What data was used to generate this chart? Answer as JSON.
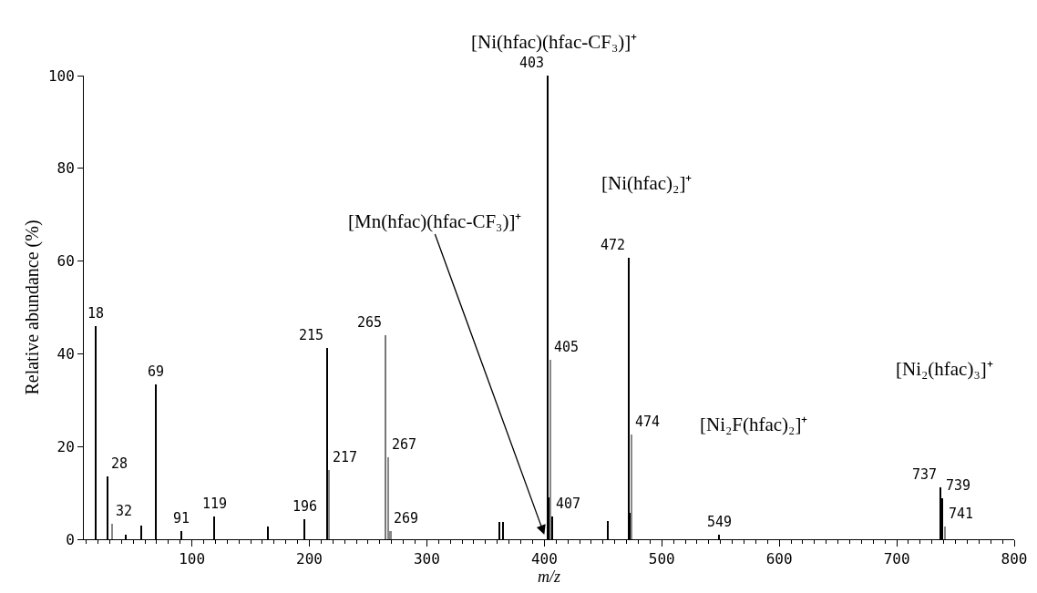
{
  "chart_data": {
    "type": "bar",
    "xlabel": "m/z",
    "ylabel": "Relative abundance (%)",
    "x": [
      18,
      28,
      32,
      44,
      57,
      69,
      91,
      119,
      165,
      196,
      215,
      217,
      265,
      267,
      269,
      362,
      365,
      403,
      404,
      405,
      407,
      454,
      472,
      473,
      474,
      549,
      737,
      739,
      741
    ],
    "values": [
      46,
      13.5,
      3.3,
      1,
      3,
      33.4,
      1.8,
      4.9,
      2.8,
      4.3,
      41.3,
      15,
      44,
      17.7,
      1.8,
      3.7,
      3.7,
      100,
      9,
      38.7,
      5,
      4,
      60.7,
      5.7,
      22.6,
      1,
      11.2,
      8.8,
      2.7
    ],
    "colors": [
      "#000000",
      "#000000",
      "#888888",
      "#000000",
      "#000000",
      "#000000",
      "#000000",
      "#000000",
      "#000000",
      "#000000",
      "#000000",
      "#888888",
      "#777777",
      "#888888",
      "#888888",
      "#000000",
      "#000000",
      "#000000",
      "#000000",
      "#888888",
      "#000000",
      "#000000",
      "#000000",
      "#000000",
      "#888888",
      "#000000",
      "#000000",
      "#000000",
      "#888888"
    ],
    "xlim": [
      8,
      800
    ],
    "xticks": [
      100,
      200,
      300,
      400,
      500,
      600,
      700,
      800
    ],
    "ylim": [
      0,
      100
    ],
    "yticks": [
      0,
      20,
      40,
      60,
      80,
      100
    ],
    "annotations": [
      "[Ni(hfac)(hfac-CF₃)]⁺",
      "[Ni(hfac)₂]⁺",
      "[Ni₂F(hfac)₂]⁺",
      "[Ni₂(hfac)₃]⁺",
      {
        "text": "[Mn(hfac)(hfac-CF₃)]⁺",
        "x": 400,
        "y": 1
      },
      {
        "text": "18",
        "x": 18,
        "y": 46
      },
      {
        "text": "28",
        "x": 28,
        "y": 13.5
      },
      {
        "text": "32",
        "x": 32,
        "y": 3.3
      },
      {
        "text": "69",
        "x": 69,
        "y": 33.4
      },
      {
        "text": "91",
        "x": 91,
        "y": 1.8
      },
      {
        "text": "119",
        "x": 119,
        "y": 4.9
      },
      {
        "text": "196",
        "x": 196,
        "y": 4.3
      },
      {
        "text": "215",
        "x": 215,
        "y": 41.3
      },
      {
        "text": "217",
        "x": 217,
        "y": 15
      },
      {
        "text": "265",
        "x": 265,
        "y": 44
      },
      {
        "text": "267",
        "x": 267,
        "y": 17.7
      },
      {
        "text": "269",
        "x": 269,
        "y": 1.8
      },
      {
        "text": "403",
        "x": 403,
        "y": 100
      },
      {
        "text": "405",
        "x": 405,
        "y": 38.7
      },
      {
        "text": "407",
        "x": 407,
        "y": 5
      },
      {
        "text": "472",
        "x": 472,
        "y": 60.7
      },
      {
        "text": "474",
        "x": 474,
        "y": 22.6
      },
      {
        "text": "549",
        "x": 549,
        "y": 1
      },
      {
        "text": "737",
        "x": 737,
        "y": 11.2
      },
      {
        "text": "739",
        "x": 739,
        "y": 8.8
      },
      {
        "text": "741",
        "x": 741,
        "y": 2.7
      }
    ]
  }
}
